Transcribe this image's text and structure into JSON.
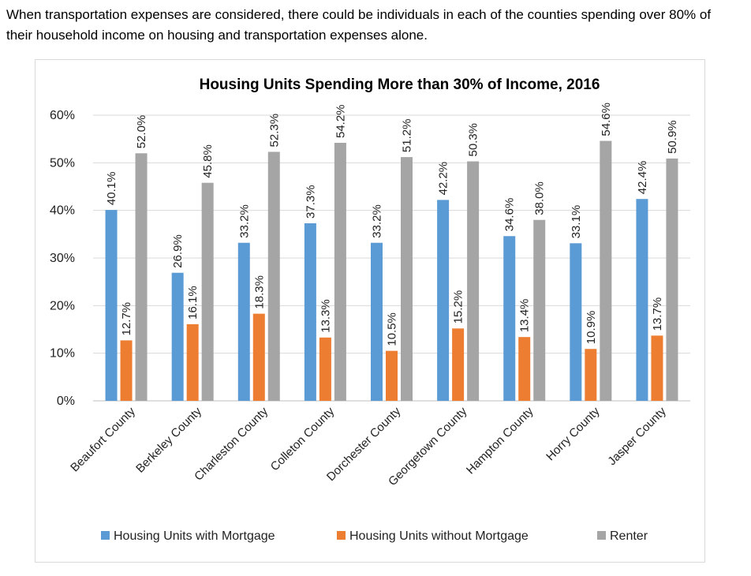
{
  "intro_text": "When transportation expenses are considered, there could be individuals in each of the counties spending over 80% of their household income on housing and transportation expenses alone.",
  "chart_data": {
    "type": "bar",
    "title": "Housing Units Spending More than 30% of Income, 2016",
    "xlabel": "",
    "ylabel": "",
    "ylim": [
      0,
      60
    ],
    "yticks": [
      "0%",
      "10%",
      "20%",
      "30%",
      "40%",
      "50%",
      "60%"
    ],
    "categories": [
      "Beaufort County",
      "Berkeley County",
      "Charleston County",
      "Colleton County",
      "Dorchester County",
      "Georgetown County",
      "Hampton County",
      "Horry County",
      "Jasper County"
    ],
    "series": [
      {
        "name": "Housing Units with Mortgage",
        "color": "#5b9bd5",
        "values": [
          40.1,
          26.9,
          33.2,
          37.3,
          33.2,
          42.2,
          34.6,
          33.1,
          42.4
        ],
        "labels": [
          "40.1%",
          "26.9%",
          "33.2%",
          "37.3%",
          "33.2%",
          "42.2%",
          "34.6%",
          "33.1%",
          "42.4%"
        ]
      },
      {
        "name": "Housing Units without Mortgage",
        "color": "#ed7d31",
        "values": [
          12.7,
          16.1,
          18.3,
          13.3,
          10.5,
          15.2,
          13.4,
          10.9,
          13.7
        ],
        "labels": [
          "12.7%",
          "16.1%",
          "18.3%",
          "13.3%",
          "10.5%",
          "15.2%",
          "13.4%",
          "10.9%",
          "13.7%"
        ]
      },
      {
        "name": "Renter",
        "color": "#a5a5a5",
        "values": [
          52.0,
          45.8,
          52.3,
          54.2,
          51.2,
          50.3,
          38.0,
          54.6,
          50.9
        ],
        "labels": [
          "52.0%",
          "45.8%",
          "52.3%",
          "54.2%",
          "51.2%",
          "50.3%",
          "38.0%",
          "54.6%",
          "50.9%"
        ]
      }
    ],
    "grid": true,
    "legend_position": "bottom"
  }
}
